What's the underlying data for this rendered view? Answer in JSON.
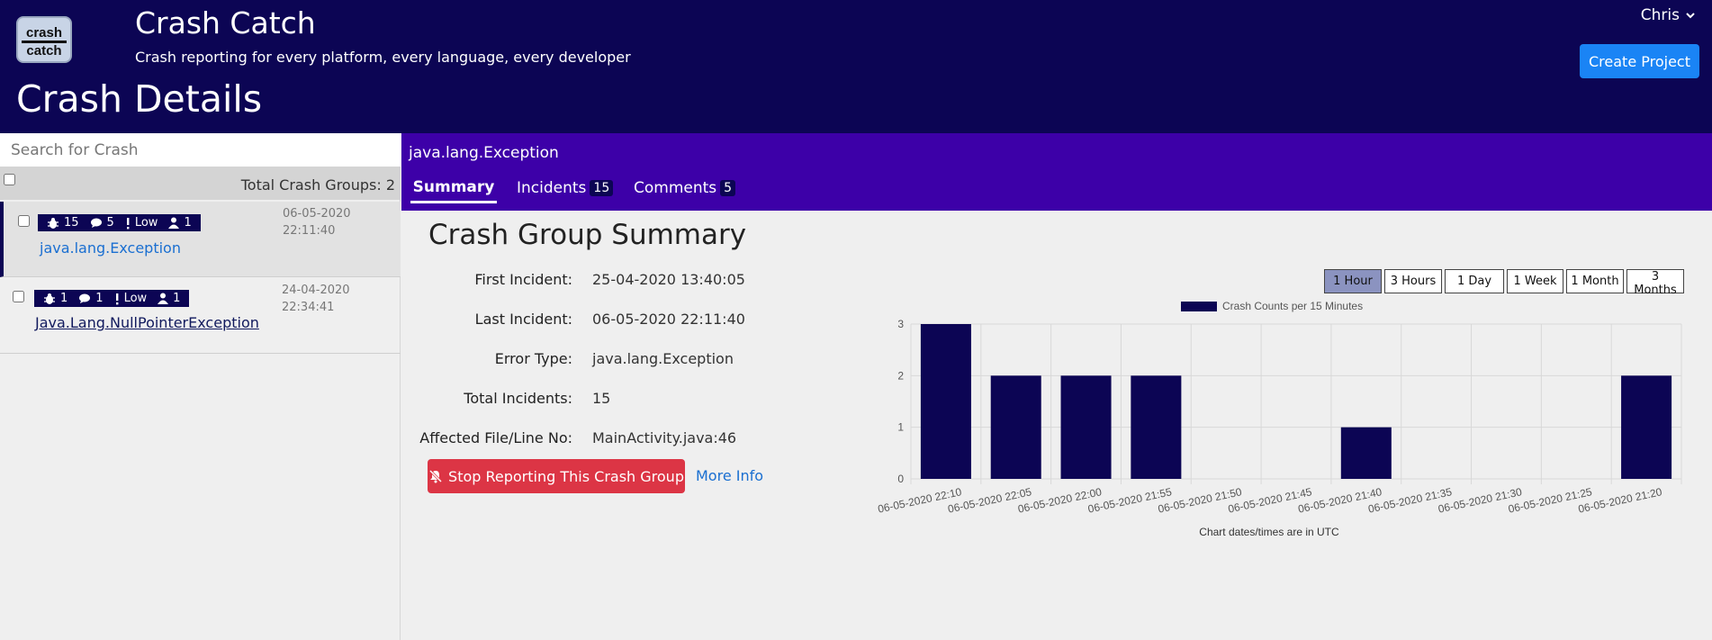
{
  "header": {
    "logo_text_top": "crash",
    "logo_text_bottom": "catch",
    "app_title": "Crash Catch",
    "subtitle": "Crash reporting for every platform, every language, every developer",
    "page_title": "Crash Details",
    "user_name": "Chris",
    "create_project_label": "Create Project"
  },
  "sidebar": {
    "search_placeholder": "Search for Crash",
    "total_label": "Total Crash Groups: 2",
    "items": [
      {
        "incidents": "15",
        "comments": "5",
        "severity": "Low",
        "users": "1",
        "date_line1": "06-05-2020",
        "date_line2": "22:11:40",
        "name": "java.lang.Exception",
        "selected": true
      },
      {
        "incidents": "1",
        "comments": "1",
        "severity": "Low",
        "users": "1",
        "date_line1": "24-04-2020 22:34:41",
        "date_line2": "",
        "name": "Java.Lang.NullPointerException",
        "selected": false
      }
    ]
  },
  "main": {
    "exception_name": "java.lang.Exception",
    "tabs": [
      {
        "label": "Summary",
        "count": "",
        "active": true
      },
      {
        "label": "Incidents",
        "count": "15",
        "active": false
      },
      {
        "label": "Comments",
        "count": "5",
        "active": false
      }
    ],
    "section_title": "Crash Group Summary",
    "details": [
      {
        "label": "First Incident:",
        "value": "25-04-2020 13:40:05"
      },
      {
        "label": "Last Incident:",
        "value": "06-05-2020 22:11:40"
      },
      {
        "label": "Error Type:",
        "value": "java.lang.Exception"
      },
      {
        "label": "Total Incidents:",
        "value": "15"
      },
      {
        "label": "Affected File/Line No:",
        "value": "MainActivity.java:46"
      }
    ],
    "stop_label": "Stop Reporting This Crash Group",
    "more_info_label": "More Info",
    "range_buttons": [
      {
        "label": "1 Hour",
        "active": true
      },
      {
        "label": "3 Hours",
        "active": false
      },
      {
        "label": "1 Day",
        "active": false
      },
      {
        "label": "1 Week",
        "active": false
      },
      {
        "label": "1 Month",
        "active": false
      },
      {
        "label": "3 Months",
        "active": false
      }
    ]
  },
  "colors": {
    "header_bg": "#0c0554",
    "tabs_bg": "#3d00a8",
    "bar_color": "#0c0554",
    "danger": "#dc3545",
    "primary": "#1a84f5",
    "link": "#1a6fd1"
  },
  "chart_data": {
    "type": "bar",
    "title": "",
    "legend": "Crash Counts per 15 Minutes",
    "legend_position": "top",
    "xlabel": "Chart dates/times are in UTC",
    "ylabel": "",
    "categories": [
      "06-05-2020 22:10",
      "06-05-2020 22:05",
      "06-05-2020 22:00",
      "06-05-2020 21:55",
      "06-05-2020 21:50",
      "06-05-2020 21:45",
      "06-05-2020 21:40",
      "06-05-2020 21:35",
      "06-05-2020 21:30",
      "06-05-2020 21:25",
      "06-05-2020 21:20"
    ],
    "values": [
      3,
      2,
      2,
      2,
      0,
      0,
      1,
      0,
      0,
      0,
      2
    ],
    "ylim": [
      0,
      3
    ],
    "yticks": [
      0,
      1,
      2,
      3
    ],
    "grid": true
  }
}
